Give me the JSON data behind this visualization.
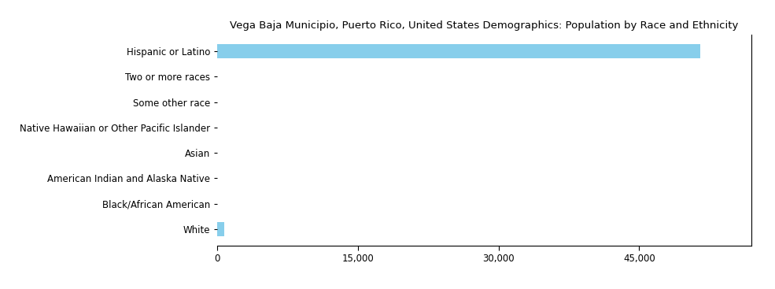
{
  "title": "Vega Baja Municipio, Puerto Rico, United States Demographics: Population by Race and Ethnicity",
  "categories": [
    "Hispanic or Latino",
    "Two or more races",
    "Some other race",
    "Native Hawaiian or Other Pacific Islander",
    "Asian",
    "American Indian and Alaska Native",
    "Black/African American",
    "White"
  ],
  "values": [
    51500,
    0,
    0,
    0,
    0,
    0,
    0,
    800
  ],
  "bar_color": "#87CEEB",
  "xlim": [
    0,
    57000
  ],
  "xticks": [
    0,
    15000,
    30000,
    45000
  ],
  "xtick_labels": [
    "0",
    "15,000",
    "30,000",
    "45,000"
  ],
  "figsize": [
    9.85,
    3.67
  ],
  "dpi": 100,
  "title_fontsize": 9.5,
  "tick_fontsize": 8.5,
  "bar_height": 0.55
}
